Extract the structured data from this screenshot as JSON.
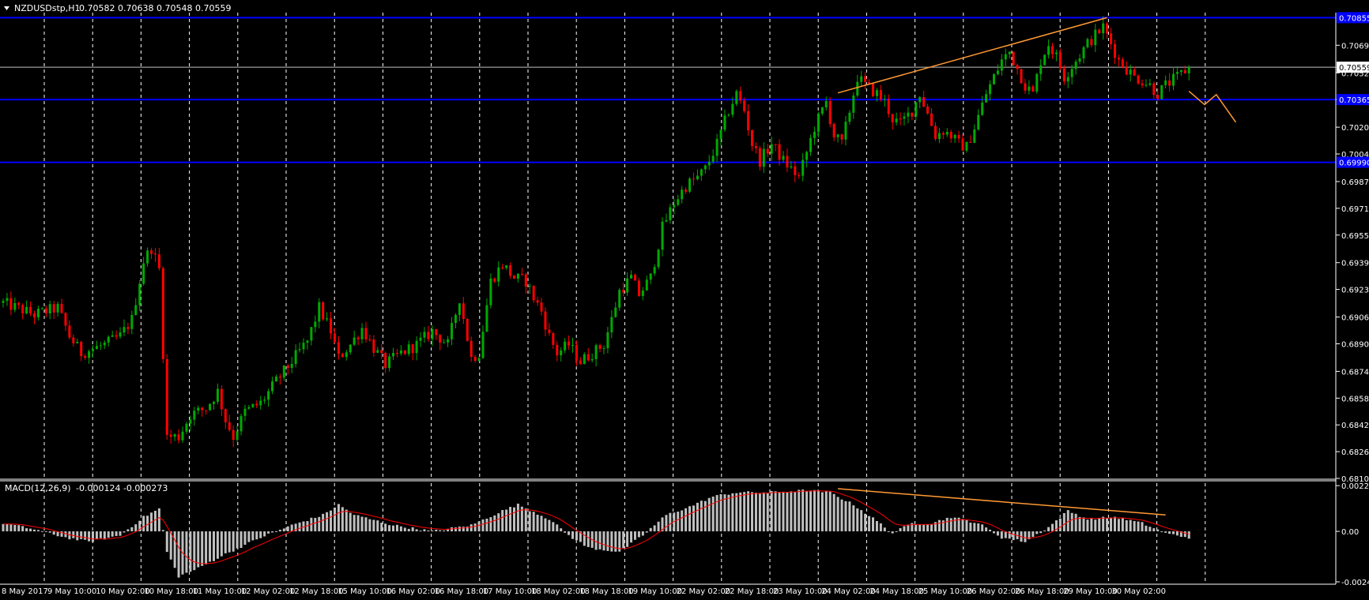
{
  "header": {
    "symbol_label": "NZDUSDstp,H1",
    "ohlc": "0.70582 0.70638 0.70548 0.70559"
  },
  "indicator": {
    "label": "MACD(12,26,9)",
    "values": "-0.000124 -0.000273"
  },
  "colors": {
    "bull": "#00aa00",
    "bear": "#ff0000",
    "grid": "#ffffff",
    "level": "#0000ff",
    "trend": "#ff9933",
    "signal": "#ff0000",
    "histogram": "#c0c0c0",
    "bid_line": "#c0c0c0"
  },
  "chart_data": [
    {
      "type": "candlestick",
      "symbol": "NZDUSDstp",
      "timeframe": "H1",
      "ylim": [
        0.681,
        0.70885
      ],
      "price_ticks": [
        "0.70690",
        "0.70525",
        "0.70365",
        "0.70200",
        "0.70040",
        "0.69875",
        "0.69715",
        "0.69555",
        "0.69390",
        "0.69230",
        "0.69065",
        "0.68905",
        "0.68740",
        "0.68580",
        "0.68420",
        "0.68260",
        "0.68100"
      ],
      "x_tick_labels": [
        "8 May 2017",
        "9 May 10:00",
        "10 May 02:00",
        "10 May 18:00",
        "11 May 10:00",
        "12 May 02:00",
        "12 May 18:00",
        "15 May 10:00",
        "16 May 02:00",
        "16 May 18:00",
        "17 May 10:00",
        "18 May 02:00",
        "18 May 18:00",
        "19 May 10:00",
        "22 May 02:00",
        "22 May 18:00",
        "23 May 10:00",
        "24 May 02:00",
        "24 May 18:00",
        "25 May 10:00",
        "26 May 02:00",
        "26 May 18:00",
        "29 May 10:00",
        "30 May 02:00"
      ],
      "current_price": "0.70559",
      "horizontal_levels": [
        {
          "price": 0.70855,
          "label": "0.70855"
        },
        {
          "price": 0.70365,
          "label": "0.70365"
        },
        {
          "price": 0.6999,
          "label": "0.69990"
        }
      ],
      "price_path": [
        [
          0,
          0.6915
        ],
        [
          8,
          0.6908
        ],
        [
          14,
          0.6912
        ],
        [
          17,
          0.6895
        ],
        [
          20,
          0.6885
        ],
        [
          26,
          0.689
        ],
        [
          30,
          0.6895
        ],
        [
          33,
          0.6905
        ],
        [
          36,
          0.694
        ],
        [
          38,
          0.6948
        ],
        [
          40,
          0.6935
        ],
        [
          42,
          0.6835
        ],
        [
          45,
          0.6835
        ],
        [
          48,
          0.6848
        ],
        [
          52,
          0.6852
        ],
        [
          55,
          0.6862
        ],
        [
          57,
          0.6845
        ],
        [
          59,
          0.6835
        ],
        [
          62,
          0.685
        ],
        [
          66,
          0.6855
        ],
        [
          70,
          0.6868
        ],
        [
          74,
          0.688
        ],
        [
          78,
          0.6892
        ],
        [
          81,
          0.6912
        ],
        [
          84,
          0.6898
        ],
        [
          86,
          0.6882
        ],
        [
          89,
          0.689
        ],
        [
          92,
          0.69
        ],
        [
          95,
          0.6888
        ],
        [
          98,
          0.6878
        ],
        [
          102,
          0.6885
        ],
        [
          106,
          0.689
        ],
        [
          110,
          0.6898
        ],
        [
          114,
          0.689
        ],
        [
          117,
          0.6918
        ],
        [
          120,
          0.6882
        ],
        [
          122,
          0.6885
        ],
        [
          125,
          0.6928
        ],
        [
          128,
          0.6938
        ],
        [
          131,
          0.693
        ],
        [
          134,
          0.6928
        ],
        [
          136,
          0.6918
        ],
        [
          138,
          0.691
        ],
        [
          140,
          0.6895
        ],
        [
          142,
          0.6885
        ],
        [
          145,
          0.689
        ],
        [
          148,
          0.688
        ],
        [
          151,
          0.6885
        ],
        [
          154,
          0.689
        ],
        [
          156,
          0.6905
        ],
        [
          158,
          0.6922
        ],
        [
          161,
          0.693
        ],
        [
          163,
          0.692
        ],
        [
          166,
          0.693
        ],
        [
          169,
          0.696
        ],
        [
          172,
          0.6975
        ],
        [
          175,
          0.6985
        ],
        [
          178,
          0.699
        ],
        [
          180,
          0.6995
        ],
        [
          183,
          0.701
        ],
        [
          186,
          0.703
        ],
        [
          188,
          0.704
        ],
        [
          190,
          0.703
        ],
        [
          192,
          0.701
        ],
        [
          194,
          0.7
        ],
        [
          197,
          0.701
        ],
        [
          200,
          0.7
        ],
        [
          202,
          0.6995
        ],
        [
          204,
          0.699
        ],
        [
          206,
          0.7005
        ],
        [
          208,
          0.702
        ],
        [
          211,
          0.7035
        ],
        [
          213,
          0.7015
        ],
        [
          215,
          0.701
        ],
        [
          217,
          0.703
        ],
        [
          219,
          0.705
        ],
        [
          221,
          0.7045
        ],
        [
          224,
          0.704
        ],
        [
          226,
          0.7035
        ],
        [
          228,
          0.7025
        ],
        [
          230,
          0.7022
        ],
        [
          233,
          0.703
        ],
        [
          235,
          0.704
        ],
        [
          237,
          0.7028
        ],
        [
          239,
          0.7015
        ],
        [
          241,
          0.7018
        ],
        [
          243,
          0.7015
        ],
        [
          245,
          0.701
        ],
        [
          247,
          0.7008
        ],
        [
          249,
          0.702
        ],
        [
          252,
          0.704
        ],
        [
          254,
          0.705
        ],
        [
          256,
          0.706
        ],
        [
          258,
          0.7065
        ],
        [
          260,
          0.7055
        ],
        [
          262,
          0.7045
        ],
        [
          264,
          0.704
        ],
        [
          266,
          0.706
        ],
        [
          268,
          0.707
        ],
        [
          270,
          0.7062
        ],
        [
          272,
          0.705
        ],
        [
          275,
          0.706
        ],
        [
          278,
          0.707
        ],
        [
          280,
          0.7075
        ],
        [
          282,
          0.708
        ],
        [
          284,
          0.707
        ],
        [
          286,
          0.706
        ],
        [
          288,
          0.7055
        ],
        [
          290,
          0.705
        ],
        [
          292,
          0.7048
        ],
        [
          294,
          0.7045
        ],
        [
          296,
          0.704
        ],
        [
          298,
          0.7045
        ],
        [
          301,
          0.705
        ],
        [
          304,
          0.70559
        ]
      ],
      "trend_line": {
        "from": [
          214,
          0.70405
        ],
        "to": [
          283,
          0.70855
        ]
      },
      "projection_path": [
        [
          304,
          0.70415
        ],
        [
          308,
          0.70335
        ],
        [
          311,
          0.70395
        ],
        [
          316,
          0.7023
        ]
      ]
    },
    {
      "type": "bar+line",
      "indicator": "MACD(12,26,9)",
      "ylim": [
        -0.0025,
        0.00235
      ],
      "ticks": [
        "0.002229",
        "0.00",
        "-0.002461"
      ],
      "histogram_path": [
        [
          0,
          0.0004
        ],
        [
          8,
          0.0001
        ],
        [
          16,
          -0.0003
        ],
        [
          22,
          -0.0005
        ],
        [
          30,
          -0.0002
        ],
        [
          36,
          0.0007
        ],
        [
          40,
          0.0011
        ],
        [
          42,
          -0.001
        ],
        [
          45,
          -0.0022
        ],
        [
          50,
          -0.0018
        ],
        [
          56,
          -0.0012
        ],
        [
          66,
          -0.0003
        ],
        [
          74,
          0.0003
        ],
        [
          82,
          0.0008
        ],
        [
          86,
          0.0013
        ],
        [
          90,
          0.0008
        ],
        [
          100,
          0.0003
        ],
        [
          110,
          0.0
        ],
        [
          120,
          0.0003
        ],
        [
          128,
          0.001
        ],
        [
          132,
          0.0013
        ],
        [
          140,
          0.0006
        ],
        [
          145,
          -0.0002
        ],
        [
          150,
          -0.0008
        ],
        [
          158,
          -0.001
        ],
        [
          164,
          -0.0002
        ],
        [
          170,
          0.0008
        ],
        [
          176,
          0.0012
        ],
        [
          182,
          0.0017
        ],
        [
          188,
          0.0019
        ],
        [
          196,
          0.0019
        ],
        [
          206,
          0.002
        ],
        [
          212,
          0.0019
        ],
        [
          218,
          0.0013
        ],
        [
          224,
          0.0005
        ],
        [
          228,
          -0.0001
        ],
        [
          233,
          0.0004
        ],
        [
          238,
          0.0004
        ],
        [
          243,
          0.0007
        ],
        [
          250,
          0.0004
        ],
        [
          256,
          -0.0003
        ],
        [
          262,
          -0.0005
        ],
        [
          268,
          0.0002
        ],
        [
          273,
          0.001
        ],
        [
          278,
          0.0006
        ],
        [
          285,
          0.0007
        ],
        [
          292,
          0.0004
        ],
        [
          298,
          -0.0001
        ],
        [
          304,
          -0.0003
        ]
      ],
      "trend_line": {
        "from": [
          214,
          0.00208
        ],
        "to": [
          298,
          0.0008
        ]
      }
    }
  ]
}
